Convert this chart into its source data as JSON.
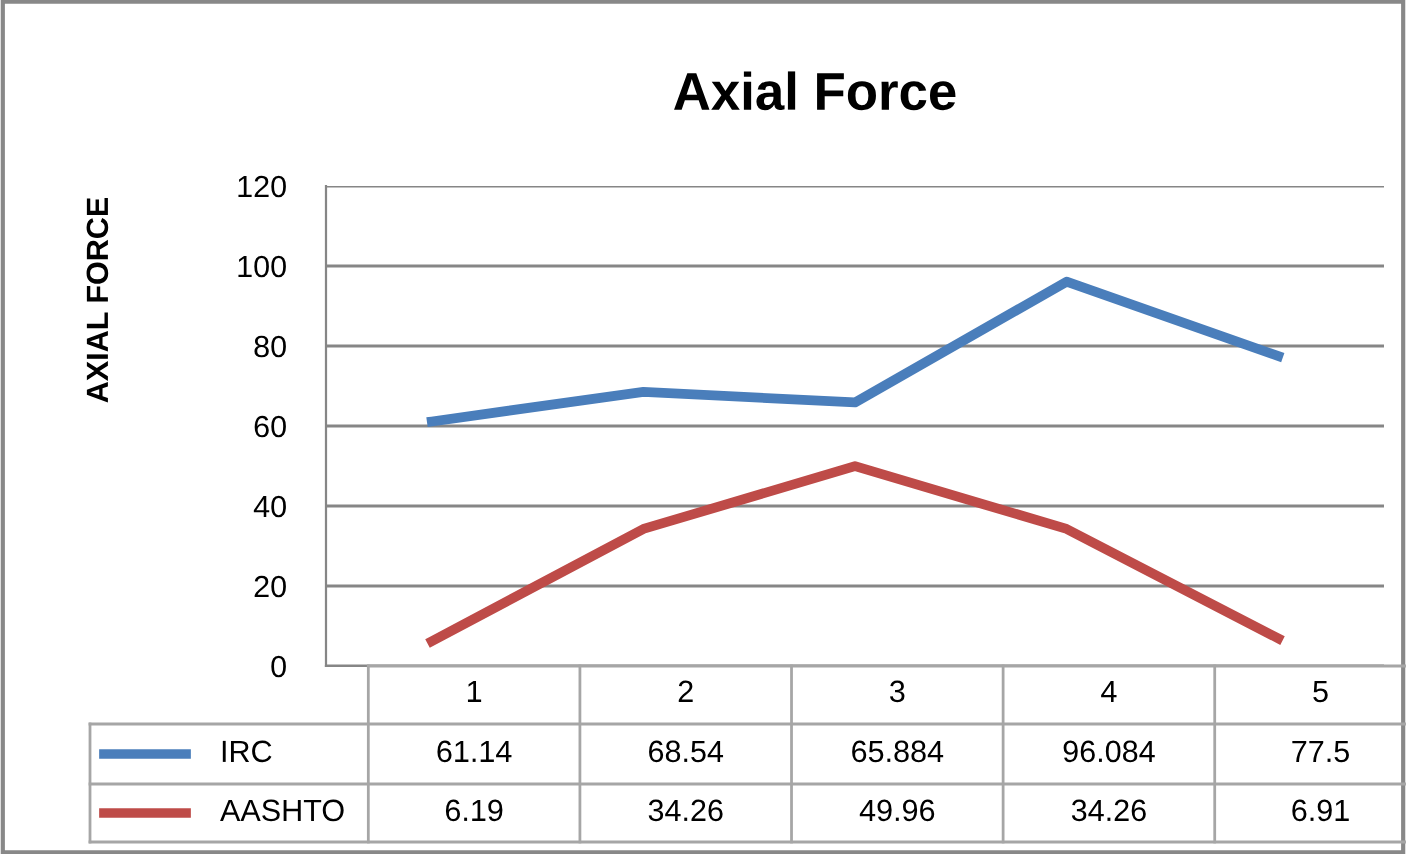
{
  "chart_data": {
    "type": "line",
    "title": "Axial Force",
    "ylabel": "AXIAL FORCE",
    "categories": [
      "1",
      "2",
      "3",
      "4",
      "5"
    ],
    "series": [
      {
        "name": "IRC",
        "color": "#4a7ebb",
        "values": [
          61.14,
          68.54,
          65.884,
          96.084,
          77.5
        ]
      },
      {
        "name": "AASHTO",
        "color": "#be4b48",
        "values": [
          6.19,
          34.26,
          49.96,
          34.26,
          6.91
        ]
      }
    ],
    "ylim": [
      0,
      120
    ],
    "yticks": [
      0,
      20,
      40,
      60,
      80,
      100,
      120
    ],
    "grid": "y",
    "legend": "bottom",
    "data_labels": true,
    "marker": "none",
    "line_style": "solid"
  }
}
